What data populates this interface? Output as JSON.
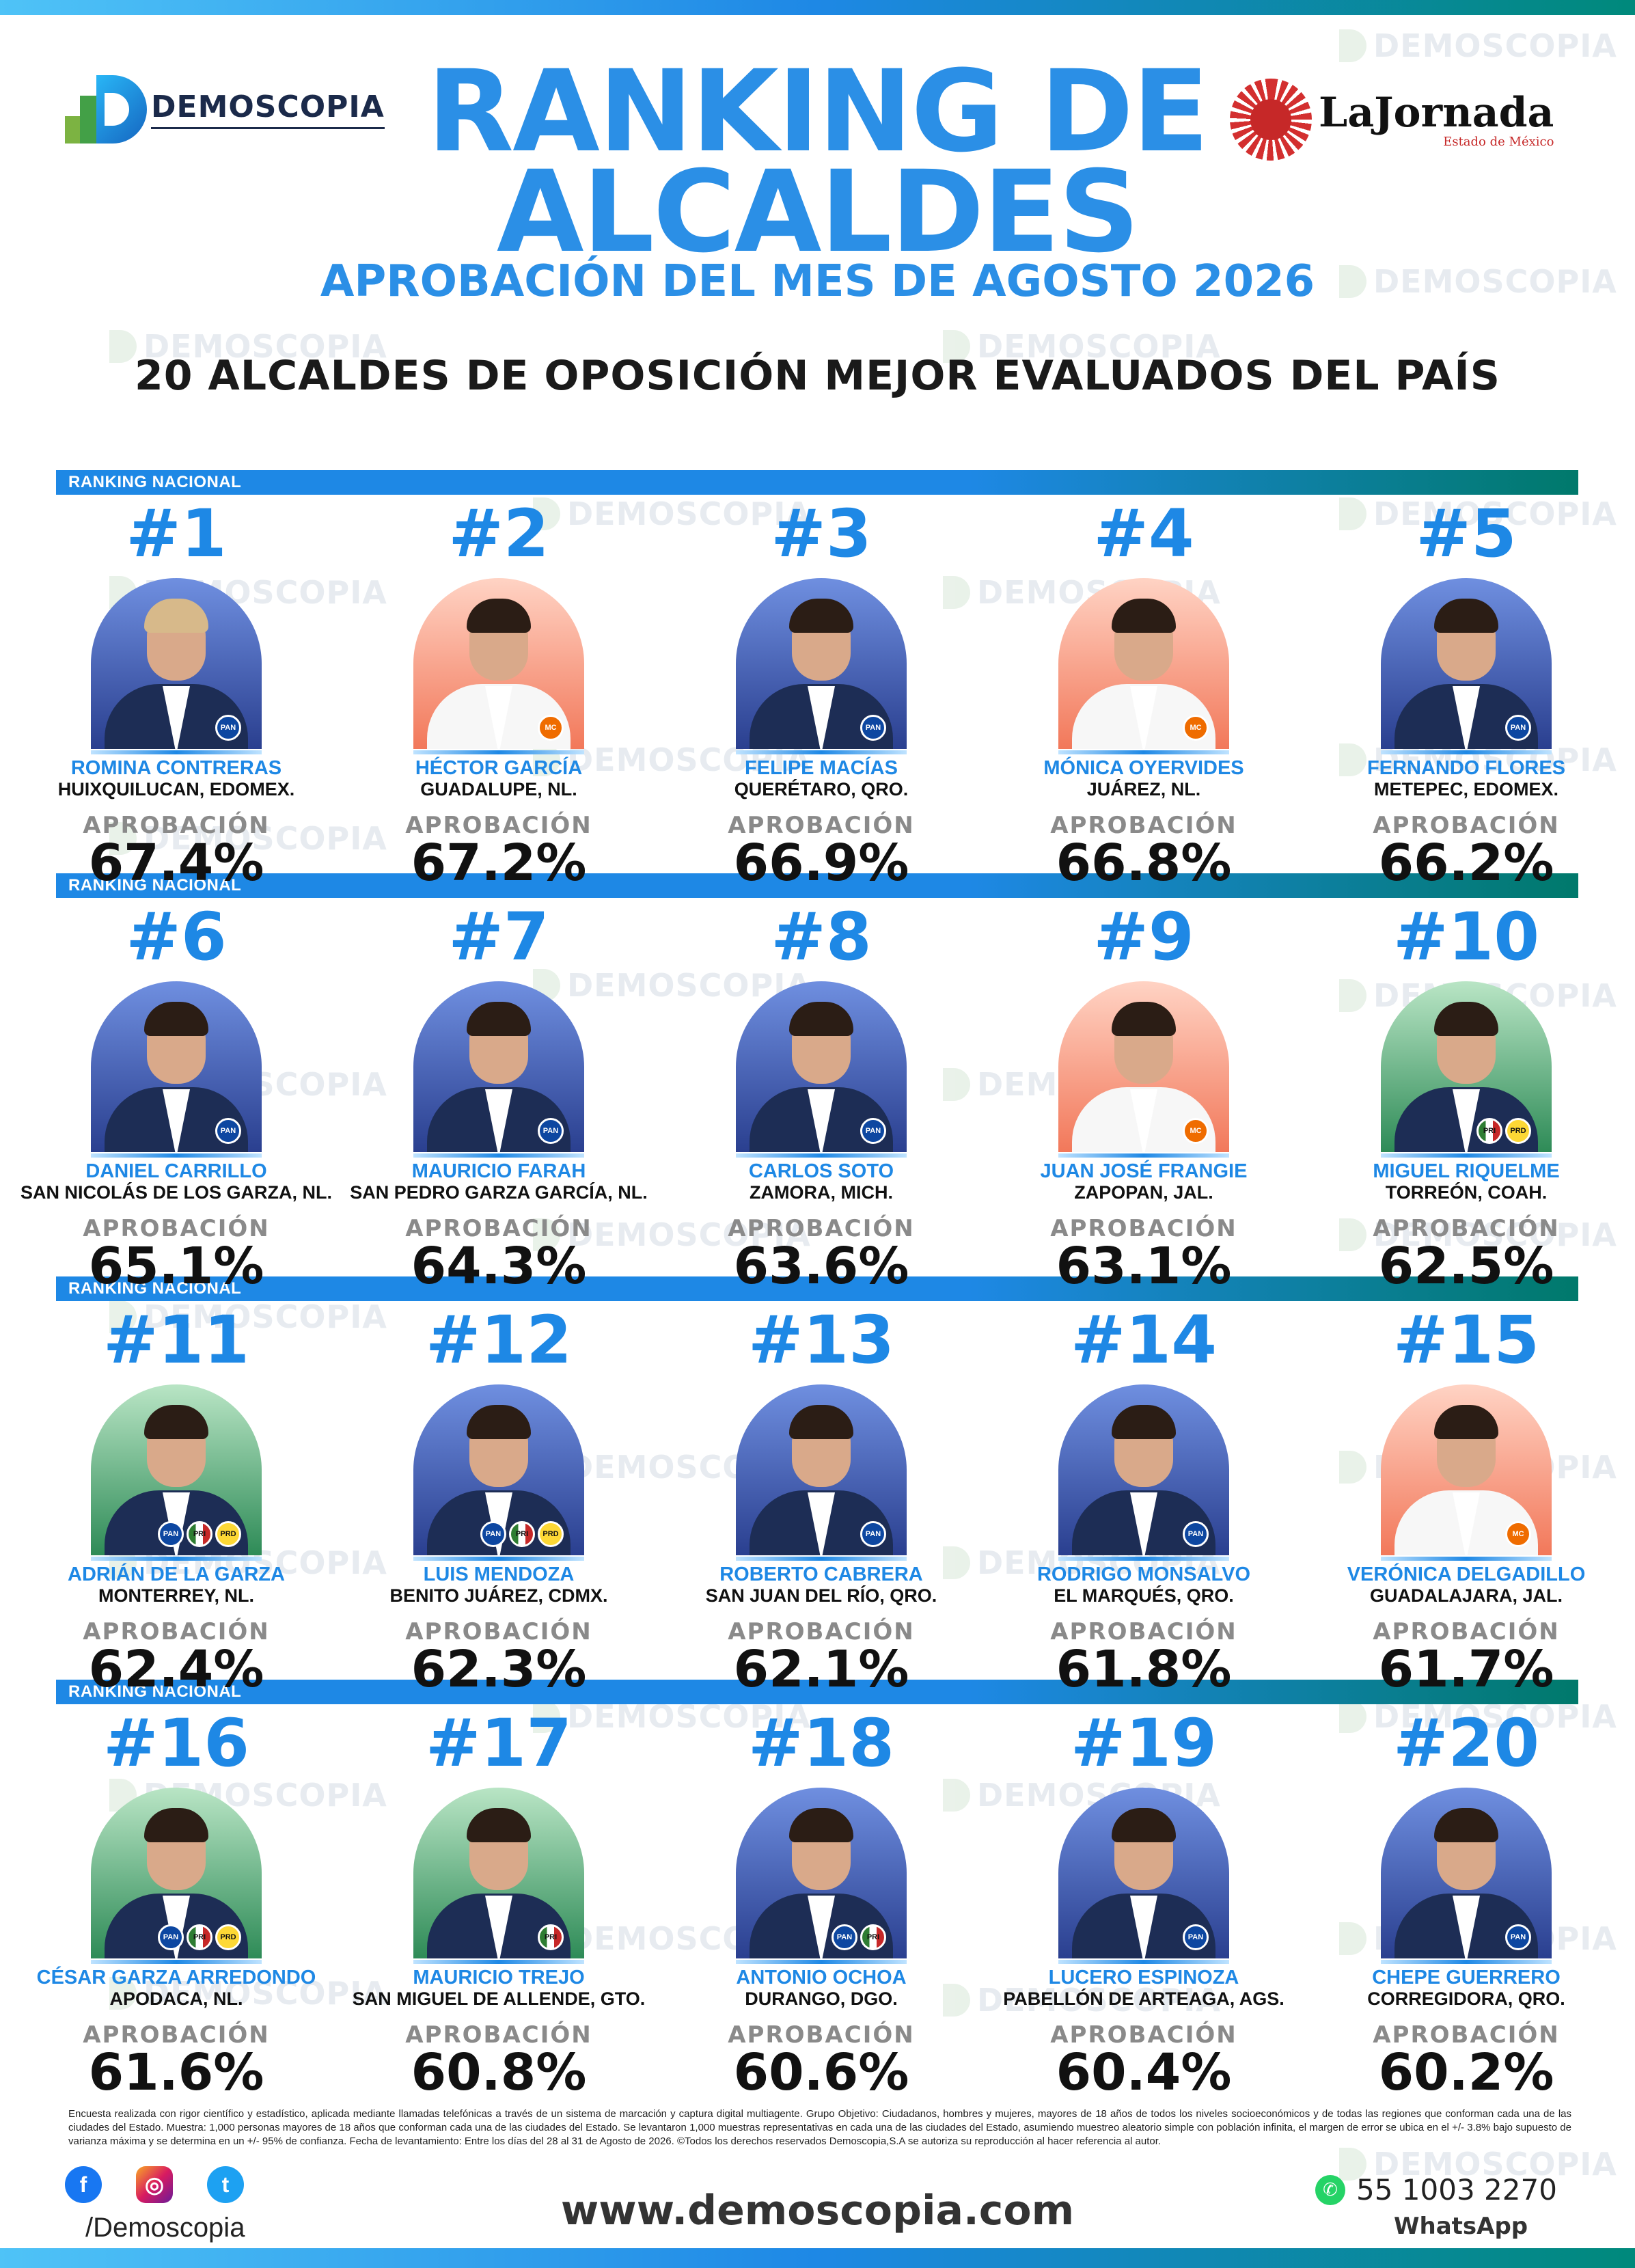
{
  "brand": {
    "demoscopia": "DEMOSCOPIA",
    "watermark": "DEMOSCOPIA",
    "partner_name": "LaJornada",
    "partner_sub": "Estado de México"
  },
  "header": {
    "title_line1": "RANKING DE",
    "title_line2": "ALCALDES",
    "subtitle": "APROBACIÓN DEL MES DE AGOSTO 2026",
    "headline": "20 ALCALDES DE OPOSICIÓN MEJOR EVALUADOS DEL PAÍS"
  },
  "band_label": "RANKING NACIONAL",
  "approval_label": "APROBACIÓN",
  "mayors": [
    {
      "rank": "#1",
      "name": "ROMINA CONTRERAS",
      "city": "HUIXQUILUCAN, EDOMEX.",
      "approval": "67.4%",
      "bg": "blue",
      "parties": [
        "PAN"
      ],
      "gender": "f"
    },
    {
      "rank": "#2",
      "name": "HÉCTOR GARCÍA",
      "city": "GUADALUPE, NL.",
      "approval": "67.2%",
      "bg": "orange",
      "parties": [
        "MC"
      ],
      "gender": "m"
    },
    {
      "rank": "#3",
      "name": "FELIPE MACÍAS",
      "city": "QUERÉTARO, QRO.",
      "approval": "66.9%",
      "bg": "blue",
      "parties": [
        "PAN"
      ],
      "gender": "m"
    },
    {
      "rank": "#4",
      "name": "MÓNICA OYERVIDES",
      "city": "JUÁREZ, NL.",
      "approval": "66.8%",
      "bg": "orange",
      "parties": [
        "MC"
      ],
      "gender": "f"
    },
    {
      "rank": "#5",
      "name": "FERNANDO FLORES",
      "city": "METEPEC, EDOMEX.",
      "approval": "66.2%",
      "bg": "blue",
      "parties": [
        "PAN"
      ],
      "gender": "m"
    },
    {
      "rank": "#6",
      "name": "DANIEL CARRILLO",
      "city": "SAN NICOLÁS DE LOS GARZA, NL.",
      "approval": "65.1%",
      "bg": "blue",
      "parties": [
        "PAN"
      ],
      "gender": "m"
    },
    {
      "rank": "#7",
      "name": "MAURICIO FARAH",
      "city": "SAN PEDRO GARZA GARCÍA, NL.",
      "approval": "64.3%",
      "bg": "blue",
      "parties": [
        "PAN"
      ],
      "gender": "m"
    },
    {
      "rank": "#8",
      "name": "CARLOS SOTO",
      "city": "ZAMORA, MICH.",
      "approval": "63.6%",
      "bg": "blue",
      "parties": [
        "PAN"
      ],
      "gender": "m"
    },
    {
      "rank": "#9",
      "name": "JUAN JOSÉ FRANGIE",
      "city": "ZAPOPAN, JAL.",
      "approval": "63.1%",
      "bg": "orange",
      "parties": [
        "MC"
      ],
      "gender": "m"
    },
    {
      "rank": "#10",
      "name": "MIGUEL RIQUELME",
      "city": "TORREÓN, COAH.",
      "approval": "62.5%",
      "bg": "green",
      "parties": [
        "PRI",
        "PRD"
      ],
      "gender": "m"
    },
    {
      "rank": "#11",
      "name": "ADRIÁN DE LA GARZA",
      "city": "MONTERREY, NL.",
      "approval": "62.4%",
      "bg": "green",
      "parties": [
        "PAN",
        "PRI",
        "PRD"
      ],
      "gender": "m"
    },
    {
      "rank": "#12",
      "name": "LUIS MENDOZA",
      "city": "BENITO JUÁREZ, CDMX.",
      "approval": "62.3%",
      "bg": "blue",
      "parties": [
        "PAN",
        "PRI",
        "PRD"
      ],
      "gender": "m"
    },
    {
      "rank": "#13",
      "name": "ROBERTO CABRERA",
      "city": "SAN JUAN DEL RÍO, QRO.",
      "approval": "62.1%",
      "bg": "blue",
      "parties": [
        "PAN"
      ],
      "gender": "m"
    },
    {
      "rank": "#14",
      "name": "RODRIGO MONSALVO",
      "city": "EL MARQUÉS, QRO.",
      "approval": "61.8%",
      "bg": "blue",
      "parties": [
        "PAN"
      ],
      "gender": "m"
    },
    {
      "rank": "#15",
      "name": "VERÓNICA DELGADILLO",
      "city": "GUADALAJARA, JAL.",
      "approval": "61.7%",
      "bg": "orange",
      "parties": [
        "MC"
      ],
      "gender": "f"
    },
    {
      "rank": "#16",
      "name": "CÉSAR GARZA ARREDONDO",
      "city": "APODACA, NL.",
      "approval": "61.6%",
      "bg": "green",
      "parties": [
        "PAN",
        "PRI",
        "PRD"
      ],
      "gender": "m"
    },
    {
      "rank": "#17",
      "name": "MAURICIO TREJO",
      "city": "SAN MIGUEL DE ALLENDE, GTO.",
      "approval": "60.8%",
      "bg": "green",
      "parties": [
        "PRI"
      ],
      "gender": "m"
    },
    {
      "rank": "#18",
      "name": "ANTONIO OCHOA",
      "city": "DURANGO, DGO.",
      "approval": "60.6%",
      "bg": "blue",
      "parties": [
        "PAN",
        "PRI"
      ],
      "gender": "m"
    },
    {
      "rank": "#19",
      "name": "LUCERO ESPINOZA",
      "city": "PABELLÓN DE ARTEAGA, AGS.",
      "approval": "60.4%",
      "bg": "blue",
      "parties": [
        "PAN"
      ],
      "gender": "f"
    },
    {
      "rank": "#20",
      "name": "CHEPE GUERRERO",
      "city": "CORREGIDORA, QRO.",
      "approval": "60.2%",
      "bg": "blue",
      "parties": [
        "PAN"
      ],
      "gender": "m"
    }
  ],
  "footer": {
    "disclaimer": "Encuesta realizada con rigor científico y estadístico, aplicada mediante llamadas telefónicas a través de un sistema de marcación y captura digital multiagente. Grupo Objetivo: Ciudadanos, hombres y mujeres, mayores de 18 años de todos los niveles socioeconómicos y de todas las regiones que conforman cada una de las ciudades del Estado. Muestra: 1,000 personas mayores de 18 años que conforman cada una de las ciudades del Estado. Se levantaron 1,000 muestras representativas en cada una de las ciudades del Estado, asumiendo muestreo aleatorio simple con población infinita, el margen de error se ubica en el +/- 3.8% bajo supuesto de varianza máxima y se determina en un +/- 95% de confianza. Fecha de levantamiento: Entre los días del 28 al 31 de Agosto de 2026. ©Todos los derechos reservados Demoscopia,S.A se autoriza su reproducción al hacer referencia al autor.",
    "handle": "/Demoscopia",
    "website": "www.demoscopia.com",
    "phone": "55 1003 2270",
    "whatsapp_label": "WhatsApp",
    "social_icons": [
      "facebook-icon",
      "instagram-icon",
      "twitter-icon"
    ]
  },
  "colors": {
    "accent_blue": "#2b8fe6",
    "band_teal": "#00796b"
  }
}
